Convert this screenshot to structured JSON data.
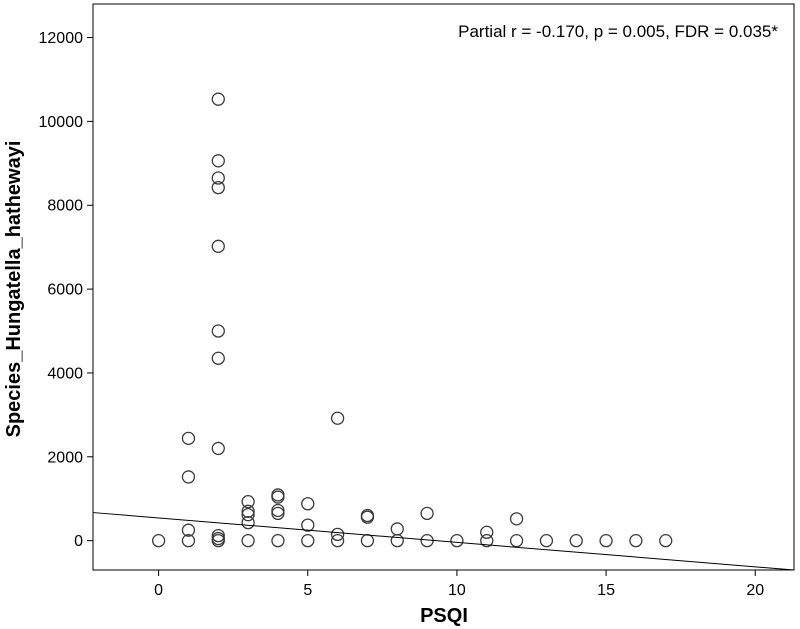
{
  "chart_data": {
    "type": "scatter",
    "title": "",
    "xlabel": "PSQI",
    "ylabel": "Species_Hungatella_hathewayi",
    "annotation": "Partial r = -0.170, p = 0.005, FDR = 0.035*",
    "xlim": [
      -2.2,
      21.3
    ],
    "ylim": [
      -700,
      12800
    ],
    "x_ticks": [
      0,
      5,
      10,
      15,
      20
    ],
    "y_ticks": [
      0,
      2000,
      4000,
      6000,
      8000,
      10000,
      12000
    ],
    "grid": false,
    "points": [
      {
        "x": 0,
        "y": 0
      },
      {
        "x": 1,
        "y": 0
      },
      {
        "x": 1,
        "y": 250
      },
      {
        "x": 1,
        "y": 1520
      },
      {
        "x": 1,
        "y": 2440
      },
      {
        "x": 2,
        "y": 0
      },
      {
        "x": 2,
        "y": 50
      },
      {
        "x": 2,
        "y": 120
      },
      {
        "x": 2,
        "y": 2200
      },
      {
        "x": 2,
        "y": 4350
      },
      {
        "x": 2,
        "y": 5000
      },
      {
        "x": 2,
        "y": 7020
      },
      {
        "x": 2,
        "y": 8420
      },
      {
        "x": 2,
        "y": 8650
      },
      {
        "x": 2,
        "y": 9060
      },
      {
        "x": 2,
        "y": 10530
      },
      {
        "x": 3,
        "y": 0
      },
      {
        "x": 3,
        "y": 430
      },
      {
        "x": 3,
        "y": 620
      },
      {
        "x": 3,
        "y": 700
      },
      {
        "x": 3,
        "y": 930
      },
      {
        "x": 4,
        "y": 0
      },
      {
        "x": 4,
        "y": 650
      },
      {
        "x": 4,
        "y": 720
      },
      {
        "x": 4,
        "y": 1040
      },
      {
        "x": 4,
        "y": 1090
      },
      {
        "x": 5,
        "y": 0
      },
      {
        "x": 5,
        "y": 370
      },
      {
        "x": 5,
        "y": 880
      },
      {
        "x": 6,
        "y": 0
      },
      {
        "x": 6,
        "y": 150
      },
      {
        "x": 6,
        "y": 2920
      },
      {
        "x": 7,
        "y": 0
      },
      {
        "x": 7,
        "y": 560
      },
      {
        "x": 7,
        "y": 600
      },
      {
        "x": 8,
        "y": 0
      },
      {
        "x": 8,
        "y": 280
      },
      {
        "x": 9,
        "y": 0
      },
      {
        "x": 9,
        "y": 650
      },
      {
        "x": 10,
        "y": 0
      },
      {
        "x": 11,
        "y": 0
      },
      {
        "x": 11,
        "y": 200
      },
      {
        "x": 12,
        "y": 0
      },
      {
        "x": 12,
        "y": 520
      },
      {
        "x": 13,
        "y": 0
      },
      {
        "x": 14,
        "y": 0
      },
      {
        "x": 15,
        "y": 0
      },
      {
        "x": 16,
        "y": 0
      },
      {
        "x": 17,
        "y": 0
      }
    ],
    "fit_line": {
      "x0": -2.2,
      "y0": 670,
      "x1": 21.3,
      "y1": -700
    }
  }
}
